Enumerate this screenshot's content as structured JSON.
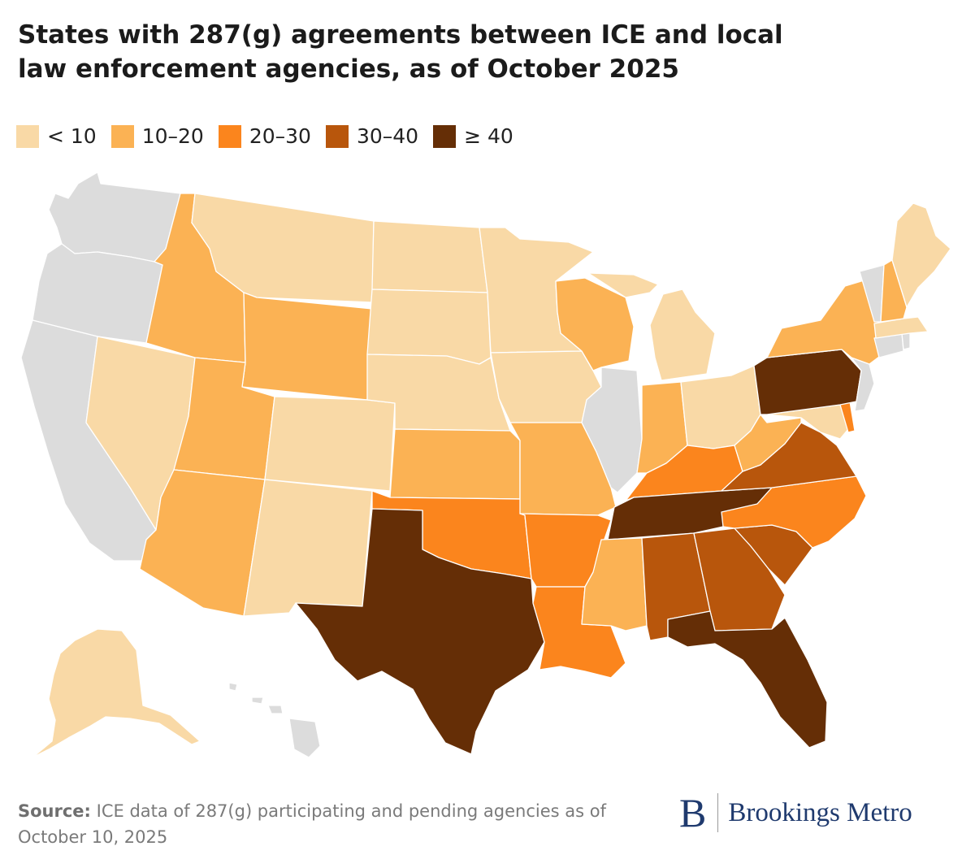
{
  "title": "States with 287(g) agreements between ICE and local law enforcement agencies, as of October 2025",
  "legend": [
    {
      "label": "< 10",
      "color": "#f9d9a6"
    },
    {
      "label": "10–20",
      "color": "#fbb254"
    },
    {
      "label": "20–30",
      "color": "#fb851d"
    },
    {
      "label": "30–40",
      "color": "#b8560c"
    },
    {
      "label": "≥ 40",
      "color": "#652e06"
    }
  ],
  "no_data_color": "#dcdcdc",
  "states": {
    "WA": "none",
    "OR": "none",
    "CA": "none",
    "NV": "<10",
    "ID": "10-20",
    "MT": "<10",
    "WY": "10-20",
    "UT": "10-20",
    "AZ": "10-20",
    "CO": "<10",
    "NM": "<10",
    "ND": "<10",
    "SD": "<10",
    "NE": "<10",
    "KS": "10-20",
    "OK": "20-30",
    "TX": ">=40",
    "MN": "<10",
    "IA": "<10",
    "MO": "10-20",
    "AR": "20-30",
    "LA": "20-30",
    "WI": "10-20",
    "IL": "none",
    "MI": "<10",
    "IN": "10-20",
    "OH": "<10",
    "KY": "20-30",
    "TN": ">=40",
    "MS": "10-20",
    "AL": "30-40",
    "GA": "30-40",
    "FL": ">=40",
    "SC": "30-40",
    "NC": "20-30",
    "VA": "30-40",
    "WV": "10-20",
    "MD": "<10",
    "DE": "20-30",
    "PA": ">=40",
    "NJ": "none",
    "NY": "10-20",
    "CT": "none",
    "RI": "none",
    "MA": "<10",
    "VT": "none",
    "NH": "10-20",
    "ME": "<10",
    "AK": "<10",
    "HI": "none"
  },
  "source": {
    "label": "Source:",
    "text": "ICE data of 287(g) participating and pending agencies as of October 10, 2025"
  },
  "brand": {
    "logo": "B",
    "name": "Brookings Metro"
  }
}
